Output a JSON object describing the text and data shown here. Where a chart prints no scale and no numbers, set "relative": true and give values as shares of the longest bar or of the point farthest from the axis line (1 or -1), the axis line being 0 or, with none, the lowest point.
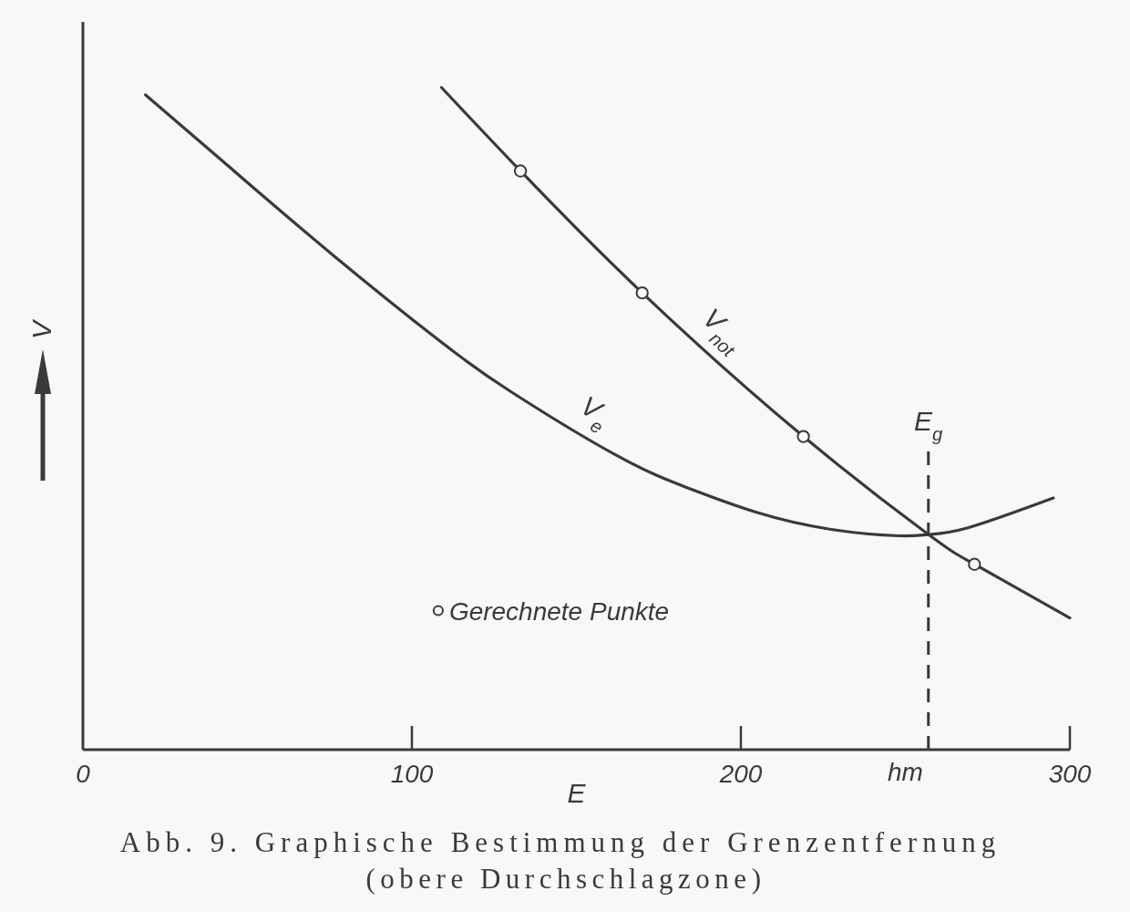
{
  "chart_data": {
    "type": "line",
    "title": "Abb. 9. Graphische Bestimmung der Grenzentfernung",
    "subtitle": "(obere Durchschlagzone)",
    "xlabel": "E",
    "ylabel": "V",
    "annotations": [
      "hm"
    ],
    "relative": true,
    "xlim": [
      0,
      300
    ],
    "xticks": [
      0,
      100,
      200,
      300
    ],
    "series": [
      {
        "name": "V$_{e}$",
        "color": "#3a3a3a",
        "x": [
          19,
          45,
          76,
          108,
          130,
          162,
          184,
          205,
          227,
          248,
          257,
          269,
          295
        ],
        "values": [
          0.989,
          0.878,
          0.747,
          0.619,
          0.541,
          0.445,
          0.395,
          0.358,
          0.333,
          0.323,
          0.325,
          0.335,
          0.38
        ]
      },
      {
        "name": "V$_{not}$",
        "color": "#3a3a3a",
        "x": [
          109,
          133,
          170,
          219,
          257,
          271,
          300
        ],
        "values": [
          1.0,
          0.874,
          0.69,
          0.473,
          0.325,
          0.28,
          0.199
        ]
      },
      {
        "name": "Gerechnete Punkte",
        "type": "scatter",
        "marker": "circle",
        "color": "#3a3a3a",
        "x": [
          133,
          170,
          219,
          271
        ],
        "values": [
          0.874,
          0.69,
          0.473,
          0.28
        ]
      }
    ],
    "ref_lines": [
      {
        "axis": "x",
        "value": 257,
        "label": "E$_{g}$",
        "line_style": "dashed"
      }
    ],
    "legend": "bottom left"
  }
}
